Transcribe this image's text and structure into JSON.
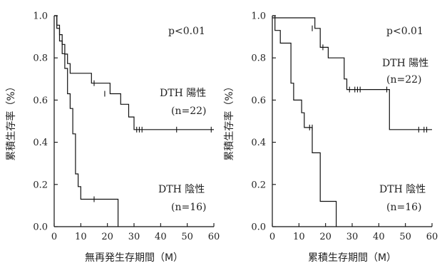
{
  "chart_data": [
    {
      "type": "line",
      "title": "",
      "xlabel": "無再発生存期間（M）",
      "ylabel": "累積生存率（%）",
      "xlim": [
        0,
        60
      ],
      "ylim": [
        0,
        1
      ],
      "xticks": [
        "0",
        "10",
        "20",
        "30",
        "40",
        "50",
        "60"
      ],
      "yticks": [
        "0.0",
        "0.2",
        "0.4",
        "0.6",
        "0.8",
        "1.0"
      ],
      "pvalue": "p<0.01",
      "grid": false,
      "series": [
        {
          "name": "DTH 陽性",
          "n_label": "(n=22)",
          "steps": [
            [
              0,
              1.0
            ],
            [
              1,
              0.955
            ],
            [
              2,
              0.91
            ],
            [
              3,
              0.864
            ],
            [
              4,
              0.818
            ],
            [
              5,
              0.773
            ],
            [
              6,
              0.727
            ],
            [
              14,
              0.68
            ],
            [
              21,
              0.63
            ],
            [
              25,
              0.58
            ],
            [
              28,
              0.52
            ],
            [
              30,
              0.46
            ],
            [
              60,
              0.46
            ]
          ],
          "censor": [
            [
              15,
              0.68
            ],
            [
              19,
              0.63
            ],
            [
              31,
              0.46
            ],
            [
              32,
              0.46
            ],
            [
              33,
              0.46
            ],
            [
              46,
              0.46
            ],
            [
              59,
              0.46
            ]
          ]
        },
        {
          "name": "DTH 陰性",
          "n_label": "(n=16)",
          "steps": [
            [
              0,
              1.0
            ],
            [
              1,
              0.94
            ],
            [
              2,
              0.88
            ],
            [
              3,
              0.82
            ],
            [
              4,
              0.75
            ],
            [
              5,
              0.63
            ],
            [
              6,
              0.56
            ],
            [
              7,
              0.44
            ],
            [
              8,
              0.25
            ],
            [
              9,
              0.19
            ],
            [
              10,
              0.13
            ],
            [
              24,
              0.0
            ],
            [
              24,
              0.0
            ]
          ],
          "censor": [
            [
              15,
              0.13
            ]
          ]
        }
      ]
    },
    {
      "type": "line",
      "title": "",
      "xlabel": "累積生存期間（M）",
      "ylabel": "累積生存率（%）",
      "xlim": [
        0,
        60
      ],
      "ylim": [
        0,
        1
      ],
      "xticks": [
        "0",
        "10",
        "20",
        "30",
        "40",
        "50",
        "60"
      ],
      "yticks": [
        "0.0",
        "0.2",
        "0.4",
        "0.6",
        "0.8",
        "1.0"
      ],
      "pvalue": "p<0.01",
      "grid": false,
      "series": [
        {
          "name": "DTH 陽性",
          "n_label": "(n=22)",
          "steps": [
            [
              0,
              0.99
            ],
            [
              16,
              0.94
            ],
            [
              18,
              0.85
            ],
            [
              21,
              0.8
            ],
            [
              27,
              0.7
            ],
            [
              28,
              0.65
            ],
            [
              44,
              0.46
            ],
            [
              60,
              0.46
            ]
          ],
          "censor": [
            [
              15,
              0.94
            ],
            [
              19,
              0.85
            ],
            [
              29,
              0.65
            ],
            [
              31,
              0.65
            ],
            [
              32,
              0.65
            ],
            [
              33,
              0.65
            ],
            [
              43,
              0.65
            ],
            [
              55,
              0.46
            ],
            [
              57,
              0.46
            ],
            [
              58,
              0.46
            ]
          ]
        },
        {
          "name": "DTH 陰性",
          "n_label": "(n=16)",
          "steps": [
            [
              0,
              1.0
            ],
            [
              1,
              0.93
            ],
            [
              3,
              0.87
            ],
            [
              7,
              0.68
            ],
            [
              8,
              0.6
            ],
            [
              11,
              0.54
            ],
            [
              12,
              0.47
            ],
            [
              15,
              0.35
            ],
            [
              18,
              0.12
            ],
            [
              24,
              0.0
            ],
            [
              24,
              0.0
            ]
          ],
          "censor": [
            [
              14,
              0.47
            ],
            [
              15,
              0.47
            ]
          ]
        }
      ]
    }
  ]
}
